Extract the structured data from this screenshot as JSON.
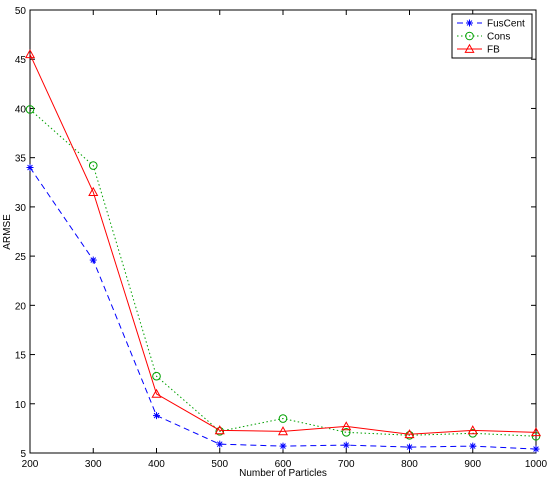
{
  "chart_data": {
    "type": "line",
    "title": "",
    "xlabel": "Number of Particles",
    "ylabel": "ARMSE",
    "x": [
      200,
      300,
      400,
      500,
      600,
      700,
      800,
      900,
      1000
    ],
    "xlim": [
      200,
      1000
    ],
    "ylim": [
      5,
      50
    ],
    "xticks": [
      200,
      300,
      400,
      500,
      600,
      700,
      800,
      900,
      1000
    ],
    "yticks": [
      5,
      10,
      15,
      20,
      25,
      30,
      35,
      40,
      45,
      50
    ],
    "grid": false,
    "legend_position": "top-right",
    "series": [
      {
        "name": "FusCent",
        "color": "#0000ff",
        "line_style": "dashed",
        "marker": "star",
        "values": [
          34.0,
          24.6,
          8.8,
          5.9,
          5.7,
          5.8,
          5.6,
          5.7,
          5.4
        ]
      },
      {
        "name": "Cons",
        "color": "#00a000",
        "line_style": "dotted",
        "marker": "circle",
        "values": [
          39.9,
          34.2,
          12.8,
          7.2,
          8.5,
          7.1,
          6.8,
          7.0,
          6.7
        ]
      },
      {
        "name": "FB",
        "color": "#ff0000",
        "line_style": "solid",
        "marker": "triangle",
        "values": [
          45.5,
          31.5,
          11.0,
          7.3,
          7.2,
          7.7,
          6.9,
          7.3,
          7.1
        ]
      }
    ]
  }
}
